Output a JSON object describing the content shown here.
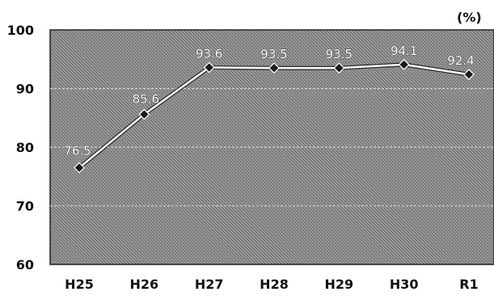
{
  "chart_data": {
    "type": "line",
    "title": "",
    "xlabel": "",
    "ylabel": "",
    "unit_label": "(%)",
    "categories": [
      "H25",
      "H26",
      "H27",
      "H28",
      "H29",
      "H30",
      "R1"
    ],
    "series": [
      {
        "values": [
          76.5,
          85.6,
          93.6,
          93.5,
          93.5,
          94.1,
          92.4
        ],
        "labels": [
          "76.5",
          "85.6",
          "93.6",
          "93.5",
          "93.5",
          "94.1",
          "92.4"
        ]
      }
    ],
    "ylim": [
      60,
      100
    ],
    "yticks": [
      "60",
      "70",
      "80",
      "90",
      "100"
    ],
    "grid": true,
    "legend": "none",
    "colors": {
      "plot_background": "#8c8c8c",
      "line": "#ffffff",
      "marker": "#1a1a1a",
      "gridline": "#d0d0d0"
    }
  }
}
